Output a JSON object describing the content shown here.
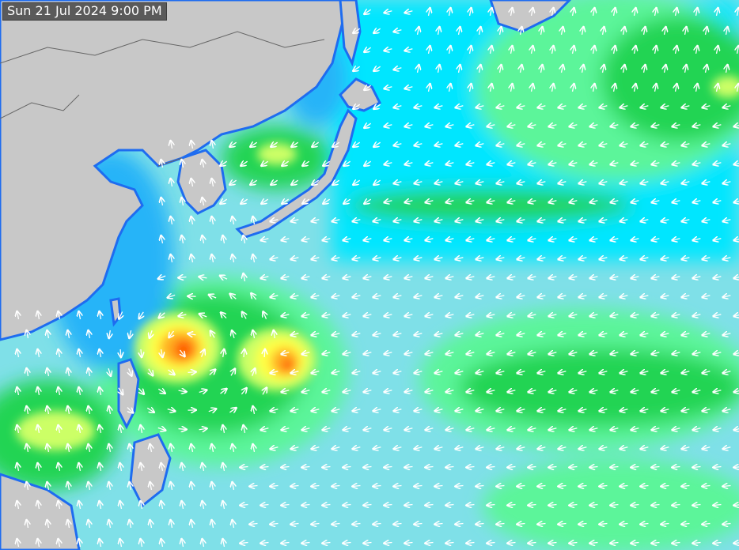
{
  "timestamp": "Sun 21 Jul 2024 9:00 PM",
  "map": {
    "type": "wave-height-forecast",
    "region": "Northwest Pacific",
    "land_color": "#c8c8c8",
    "ocean_base_color": "#7fe0e8",
    "palette": [
      "#0a14d8",
      "#1e6cf0",
      "#28b4f8",
      "#00e6ff",
      "#7fe0e8",
      "#5cf59a",
      "#22d452",
      "#00c83c",
      "#ccff66",
      "#ffff44",
      "#ffb020",
      "#ff5a00"
    ],
    "arrow_color": "#ffffff",
    "icons": [
      "wave-direction-arrow-icon"
    ]
  }
}
